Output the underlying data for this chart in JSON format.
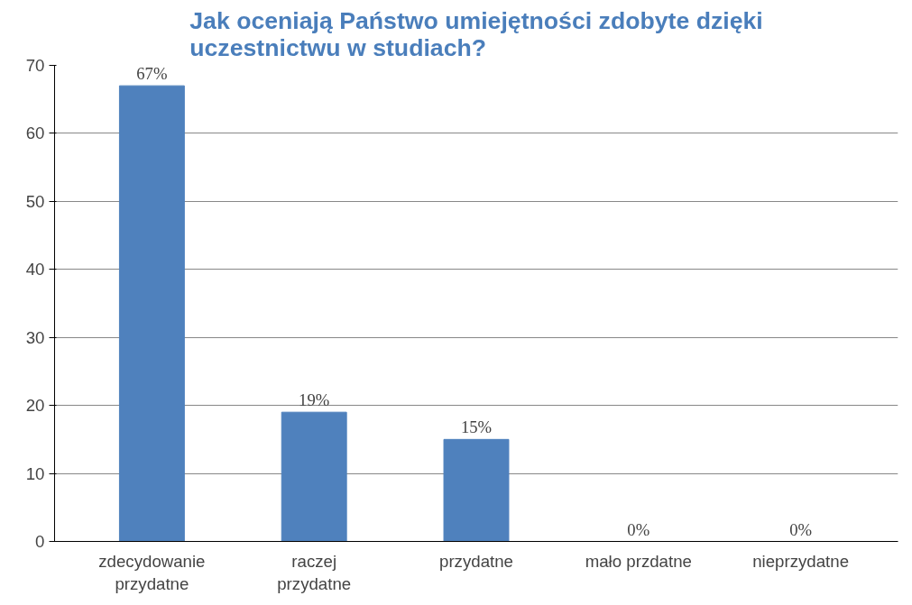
{
  "chart_data": {
    "type": "bar",
    "title": "Jak oceniają Państwo umiejętności zdobyte dzięki uczestnictwu w studiach?",
    "categories": [
      "zdecydowanie przydatne",
      "raczej przydatne",
      "przydatne",
      "mało przdatne",
      "nieprzydatne"
    ],
    "values": [
      67,
      19,
      15,
      0,
      0
    ],
    "value_labels": [
      "67%",
      "19%",
      "15%",
      "0%",
      "0%"
    ],
    "color": "#4f81bd",
    "ylim": [
      0,
      70
    ],
    "yticks": [
      0,
      10,
      20,
      30,
      40,
      50,
      60,
      70
    ],
    "grid": "y"
  }
}
